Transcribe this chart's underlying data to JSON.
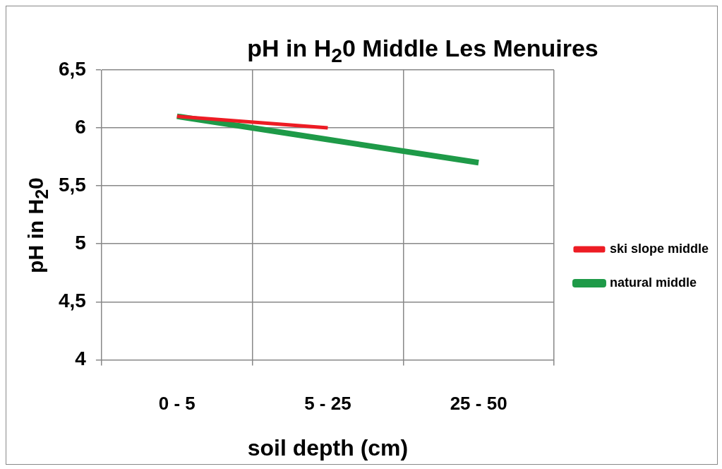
{
  "chart_data": {
    "type": "line",
    "title": "pH in H$_{2}$0 Middle Les Menuires",
    "xlabel": "soil depth (cm)",
    "ylabel": "pH in H$_{2}$0",
    "categories": [
      "0 - 5",
      "5 - 25",
      "25 - 50"
    ],
    "series": [
      {
        "name": "ski slope middle",
        "color": "#ed1c24",
        "values": [
          6.1,
          6.0,
          null
        ]
      },
      {
        "name": "natural middle",
        "color": "#1e9a48",
        "values": [
          6.1,
          5.9,
          5.7
        ]
      }
    ],
    "ylim": [
      4,
      6.5
    ],
    "yticks": [
      {
        "value": 4,
        "label": "4"
      },
      {
        "value": 4.5,
        "label": "4,5"
      },
      {
        "value": 5,
        "label": "5"
      },
      {
        "value": 5.5,
        "label": "5,5"
      },
      {
        "value": 6,
        "label": "6"
      },
      {
        "value": 6.5,
        "label": "6,5"
      }
    ],
    "grid": true,
    "legend": "right",
    "marker": "none",
    "line_style": "solid"
  }
}
